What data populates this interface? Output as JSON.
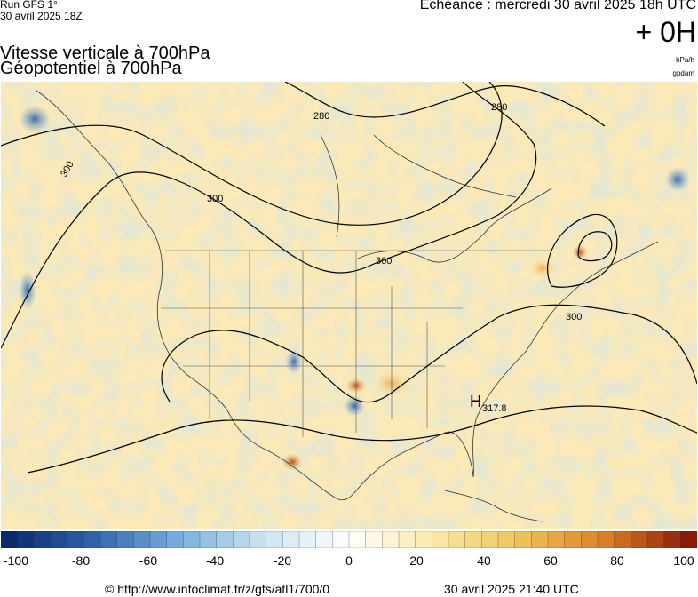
{
  "header": {
    "run_label": "Run GFS 1°",
    "run_date": "30 avril 2025 18Z",
    "forecast_time": "Echéance : mercredi 30 avril 2025 18h UTC",
    "lead_time": "+ 0H",
    "title_line1": "Vitesse verticale à 700hPa",
    "title_line2": "Géopotentiel à 700hPa",
    "unit_vertical_speed": "hPa/h",
    "unit_geopotential": "gpdam"
  },
  "map": {
    "region": "North America",
    "contour_labels": [
      "280",
      "280",
      "300",
      "300",
      "300",
      "300"
    ],
    "pressure_center": {
      "symbol": "H",
      "value": "317.8"
    }
  },
  "colorbar": {
    "tick_labels": [
      "-100",
      "-80",
      "-60",
      "-40",
      "-20",
      "0",
      "20",
      "40",
      "60",
      "80",
      "100"
    ],
    "negative_color": "#0a2a6b",
    "zero_color": "#ffffff",
    "positive_color": "#8b1a0a"
  },
  "footer": {
    "copyright": "© http://www.infoclimat.fr/z/gfs/atl1/700/0",
    "timestamp": "30 avril 2025 21:40 UTC"
  }
}
